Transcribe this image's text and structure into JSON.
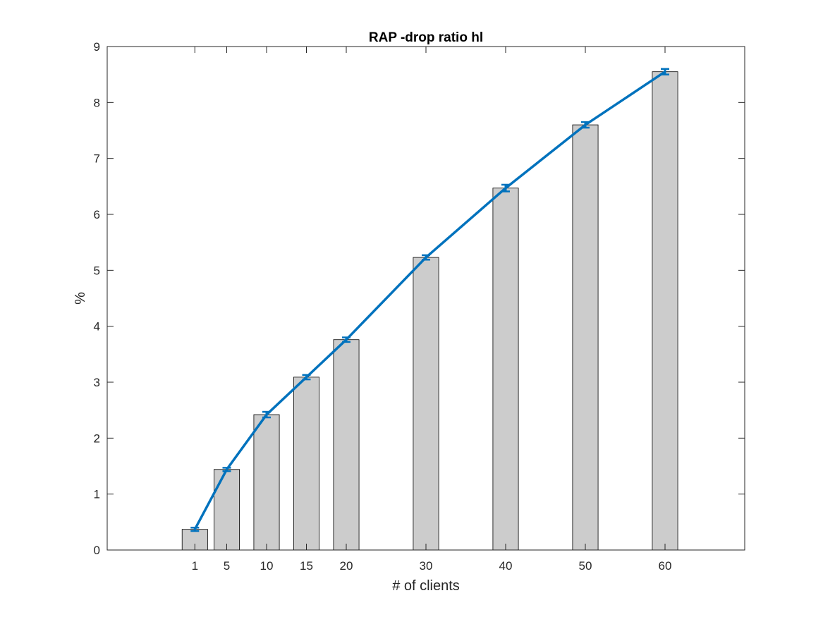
{
  "chart_data": {
    "type": "bar",
    "title": "RAP -drop ratio hl",
    "xlabel": "# of clients",
    "ylabel": "%",
    "x": [
      1,
      5,
      10,
      15,
      20,
      30,
      40,
      50,
      60
    ],
    "x_tick_labels": [
      "1",
      "5",
      "10",
      "15",
      "20",
      "30",
      "40",
      "50",
      "60"
    ],
    "xlim": [
      -10,
      70
    ],
    "ylim": [
      0,
      9
    ],
    "y_ticks": [
      0,
      1,
      2,
      3,
      4,
      5,
      6,
      7,
      8,
      9
    ],
    "y_tick_labels": [
      "0",
      "1",
      "2",
      "3",
      "4",
      "5",
      "6",
      "7",
      "8",
      "9"
    ],
    "bar_width_units": 3.2,
    "series": [
      {
        "type": "bar",
        "values": [
          0.37,
          1.44,
          2.42,
          3.09,
          3.76,
          5.23,
          6.47,
          7.6,
          8.55
        ],
        "color": "#cccccc",
        "edge_color": "#000000"
      },
      {
        "type": "line",
        "values": [
          0.37,
          1.44,
          2.42,
          3.09,
          3.76,
          5.23,
          6.47,
          7.6,
          8.55
        ],
        "error": [
          0.03,
          0.03,
          0.05,
          0.04,
          0.04,
          0.04,
          0.06,
          0.05,
          0.05
        ],
        "color": "#0072bd"
      }
    ],
    "grid": false,
    "box": true
  }
}
